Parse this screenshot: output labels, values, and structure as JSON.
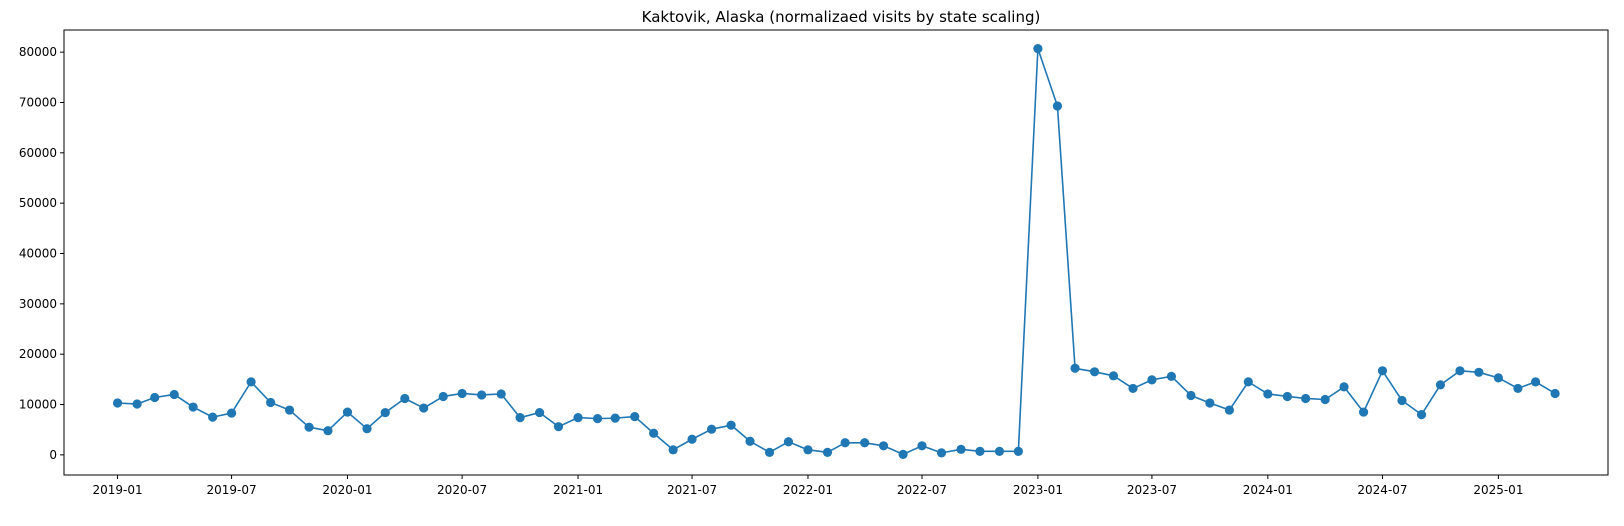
{
  "chart_data": {
    "type": "line",
    "title": "Kaktovik, Alaska (normalizaed visits by state scaling)",
    "xlabel": "",
    "ylabel": "",
    "ylim": [
      -4000,
      84400
    ],
    "xlim": [
      "2018-10-08",
      "2025-06-24"
    ],
    "grid": false,
    "legend": "none",
    "colors": {
      "line": "#1f77b4",
      "marker": "#1f77b4",
      "axes": "#000000"
    },
    "marker": "circle",
    "x_tick_labels": [
      "2019-01",
      "2019-07",
      "2020-01",
      "2020-07",
      "2021-01",
      "2021-07",
      "2022-01",
      "2022-07",
      "2023-01",
      "2023-07",
      "2024-01",
      "2024-07",
      "2025-01"
    ],
    "y_tick_labels": [
      "0",
      "10000",
      "20000",
      "30000",
      "40000",
      "50000",
      "60000",
      "70000",
      "80000"
    ],
    "series": [
      {
        "x": [
          "2019-01",
          "2019-02",
          "2019-03",
          "2019-04",
          "2019-05",
          "2019-06",
          "2019-07",
          "2019-08",
          "2019-09",
          "2019-10",
          "2019-11",
          "2019-12",
          "2020-01",
          "2020-02",
          "2020-03",
          "2020-04",
          "2020-05",
          "2020-06",
          "2020-07",
          "2020-08",
          "2020-09",
          "2020-10",
          "2020-11",
          "2020-12",
          "2021-01",
          "2021-02",
          "2021-03",
          "2021-04",
          "2021-05",
          "2021-06",
          "2021-07",
          "2021-08",
          "2021-09",
          "2021-10",
          "2021-11",
          "2021-12",
          "2022-01",
          "2022-02",
          "2022-03",
          "2022-04",
          "2022-05",
          "2022-06",
          "2022-07",
          "2022-08",
          "2022-09",
          "2022-10",
          "2022-11",
          "2022-12",
          "2023-01",
          "2023-02",
          "2023-03",
          "2023-04",
          "2023-05",
          "2023-06",
          "2023-07",
          "2023-08",
          "2023-09",
          "2023-10",
          "2023-11",
          "2023-12",
          "2024-01",
          "2024-02",
          "2024-03",
          "2024-04",
          "2024-05",
          "2024-06",
          "2024-07",
          "2024-08",
          "2024-09",
          "2024-10",
          "2024-11",
          "2024-12",
          "2025-01",
          "2025-02",
          "2025-03",
          "2025-04"
        ],
        "values": [
          10300,
          10100,
          11400,
          12000,
          9500,
          7500,
          8300,
          14500,
          10400,
          8900,
          5500,
          4800,
          8500,
          5200,
          8400,
          11200,
          9300,
          11600,
          12200,
          11900,
          12100,
          7400,
          8400,
          5600,
          7400,
          7200,
          7300,
          7600,
          4300,
          1000,
          3100,
          5100,
          5900,
          2700,
          500,
          2600,
          1000,
          500,
          2400,
          2400,
          1800,
          100,
          1800,
          400,
          1100,
          700,
          700,
          700,
          80700,
          69300,
          17200,
          16500,
          15700,
          13200,
          14900,
          15600,
          11800,
          10300,
          8900,
          14500,
          12100,
          11600,
          11200,
          11000,
          13500,
          8500,
          16700,
          10800,
          8000,
          13900,
          16700,
          16400,
          15300,
          13200,
          14500,
          12200
        ]
      }
    ]
  }
}
